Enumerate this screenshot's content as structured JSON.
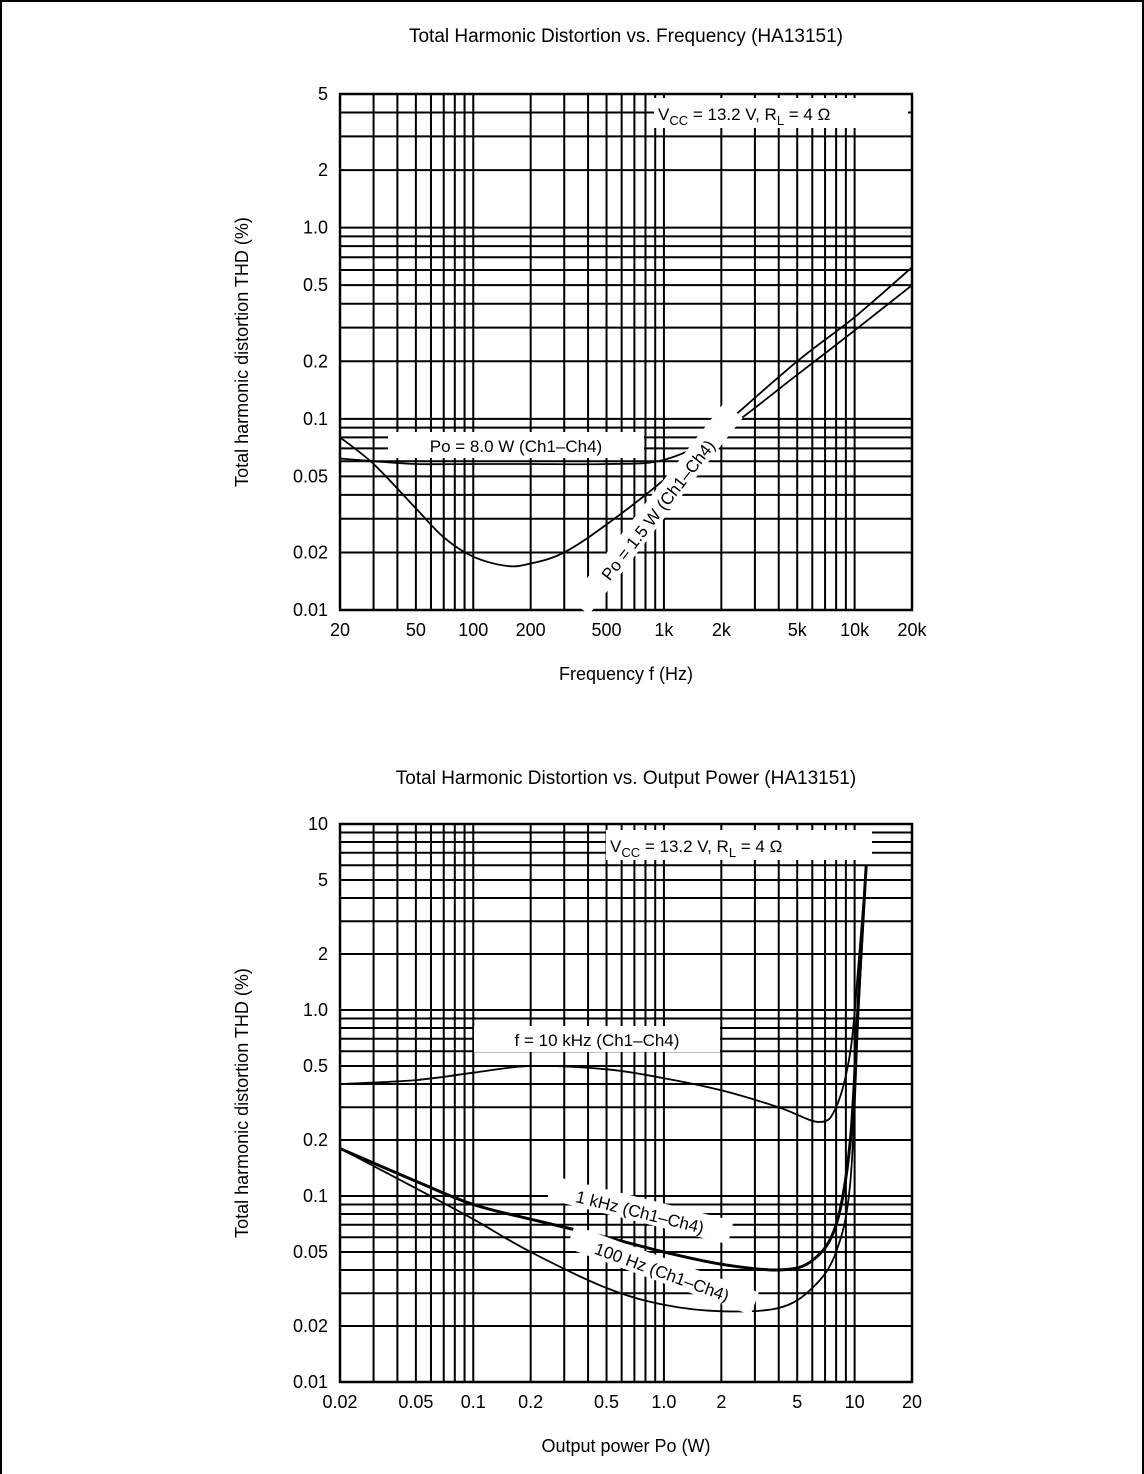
{
  "chart_data": [
    {
      "type": "line",
      "title": "Total Harmonic Distortion vs. Frequency (HA13151)",
      "xlabel": "Frequency f (Hz)",
      "ylabel": "Total harmonic distortion  THD (%)",
      "x_scale": "log",
      "y_scale": "log",
      "xlim": [
        20,
        20000
      ],
      "ylim": [
        0.01,
        5
      ],
      "x_ticks": [
        20,
        50,
        100,
        200,
        500,
        1000,
        2000,
        5000,
        10000,
        20000
      ],
      "x_tick_labels": [
        "20",
        "50",
        "100",
        "200",
        "500",
        "1k",
        "2k",
        "5k",
        "10k",
        "20k"
      ],
      "y_ticks": [
        0.01,
        0.02,
        0.05,
        0.1,
        0.2,
        0.5,
        1.0,
        2,
        5
      ],
      "y_tick_labels": [
        "0.01",
        "0.02",
        "0.05",
        "0.1",
        "0.2",
        "0.5",
        "1.0",
        "2",
        "5"
      ],
      "grid": true,
      "conditions": {
        "vcc": "V",
        "vcc_sub": "CC",
        "vcc_value": " = 13.2 V, R",
        "rl_sub": "L",
        "rl_value": " = 4 Ω"
      },
      "series": [
        {
          "name": "Po = 8.0 W (Ch1–Ch4)",
          "x": [
            20,
            30,
            50,
            100,
            200,
            500,
            1000,
            2000,
            5000,
            10000,
            20000
          ],
          "y": [
            0.062,
            0.06,
            0.058,
            0.058,
            0.058,
            0.058,
            0.061,
            0.085,
            0.17,
            0.29,
            0.5
          ]
        },
        {
          "name": "Po = 1.5 W (Ch1–Ch4)",
          "x": [
            20,
            30,
            50,
            70,
            100,
            150,
            200,
            300,
            500,
            1000,
            2000,
            5000,
            10000,
            20000
          ],
          "y": [
            0.08,
            0.058,
            0.034,
            0.024,
            0.019,
            0.017,
            0.0175,
            0.02,
            0.028,
            0.048,
            0.09,
            0.2,
            0.34,
            0.62
          ]
        }
      ]
    },
    {
      "type": "line",
      "title": "Total Harmonic Distortion vs. Output Power (HA13151)",
      "xlabel": "Output power  Po (W)",
      "ylabel": "Total harmonic distortion  THD (%)",
      "x_scale": "log",
      "y_scale": "log",
      "xlim": [
        0.02,
        20
      ],
      "ylim": [
        0.01,
        10
      ],
      "x_ticks": [
        0.02,
        0.05,
        0.1,
        0.2,
        0.5,
        1.0,
        2,
        5,
        10,
        20
      ],
      "x_tick_labels": [
        "0.02",
        "0.05",
        "0.1",
        "0.2",
        "0.5",
        "1.0",
        "2",
        "5",
        "10",
        "20"
      ],
      "y_ticks": [
        0.01,
        0.02,
        0.05,
        0.1,
        0.2,
        0.5,
        1.0,
        2,
        5,
        10
      ],
      "y_tick_labels": [
        "0.01",
        "0.02",
        "0.05",
        "0.1",
        "0.2",
        "0.5",
        "1.0",
        "2",
        "5",
        "10"
      ],
      "grid": true,
      "conditions": {
        "vcc": "V",
        "vcc_sub": "CC",
        "vcc_value": " = 13.2 V, R",
        "rl_sub": "L",
        "rl_value": " = 4 Ω"
      },
      "series": [
        {
          "name": "f = 10 kHz (Ch1–Ch4)",
          "x": [
            0.02,
            0.05,
            0.1,
            0.2,
            0.5,
            1,
            2,
            4,
            6.5,
            8,
            9.5,
            10.5,
            11.5
          ],
          "y": [
            0.4,
            0.42,
            0.46,
            0.5,
            0.48,
            0.43,
            0.37,
            0.3,
            0.25,
            0.3,
            0.6,
            1.8,
            6
          ]
        },
        {
          "name": "1 kHz (Ch1–Ch4)",
          "x": [
            0.02,
            0.05,
            0.1,
            0.2,
            0.5,
            1,
            2,
            4,
            6,
            8,
            9.5,
            10.5,
            11.5
          ],
          "y": [
            0.18,
            0.12,
            0.09,
            0.075,
            0.06,
            0.05,
            0.043,
            0.04,
            0.045,
            0.07,
            0.2,
            1.2,
            6
          ]
        },
        {
          "name": "100 Hz (Ch1–Ch4)",
          "x": [
            0.02,
            0.05,
            0.1,
            0.2,
            0.5,
            1,
            2,
            4,
            6,
            8,
            9.5,
            10.5,
            11.5
          ],
          "y": [
            0.18,
            0.11,
            0.075,
            0.05,
            0.032,
            0.026,
            0.024,
            0.025,
            0.032,
            0.05,
            0.12,
            1.0,
            6
          ]
        }
      ]
    }
  ]
}
